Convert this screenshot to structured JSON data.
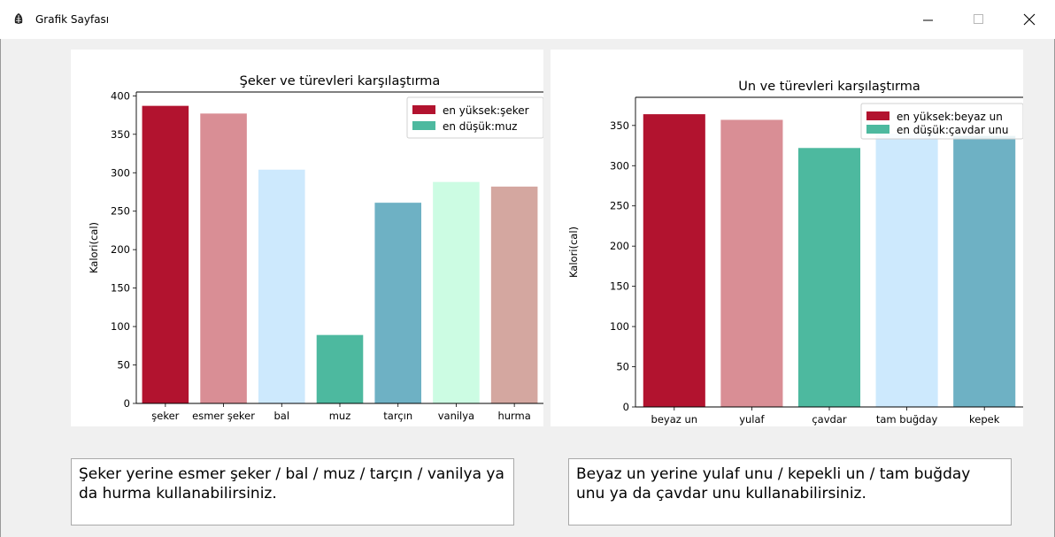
{
  "window": {
    "title": "Grafik Sayfası",
    "icon": "feather-icon",
    "controls": [
      "minimize-icon",
      "maximize-icon",
      "close-icon"
    ]
  },
  "chart_data": [
    {
      "type": "bar",
      "title": "Şeker ve türevleri karşılaştırma",
      "xlabel": "",
      "ylabel": "Kalori(cal)",
      "categories": [
        "şeker",
        "esmer şeker",
        "bal",
        "muz",
        "tarçın",
        "vanilya",
        "hurma"
      ],
      "values": [
        387,
        377,
        304,
        89,
        261,
        288,
        282
      ],
      "colors": [
        "#b2132f",
        "#d98e95",
        "#cde9fd",
        "#4db99f",
        "#6eb1c4",
        "#ccfce3",
        "#d4a7a0"
      ],
      "ylim": [
        0,
        405
      ],
      "yticks": [
        0,
        50,
        100,
        150,
        200,
        250,
        300,
        350,
        400
      ],
      "legend": [
        {
          "label": "en yüksek:şeker",
          "color": "#b2132f"
        },
        {
          "label": "en düşük:muz",
          "color": "#4db99f"
        }
      ],
      "legend_position": "upper right",
      "grid": false
    },
    {
      "type": "bar",
      "title": "Un ve türevleri karşılaştırma",
      "xlabel": "",
      "ylabel": "Kalori(cal)",
      "categories": [
        "beyaz un",
        "yulaf",
        "çavdar",
        "tam buğday",
        "kepek"
      ],
      "values": [
        364,
        357,
        322,
        340,
        337
      ],
      "colors": [
        "#b2132f",
        "#d98e95",
        "#4db99f",
        "#cde9fd",
        "#6eb1c4"
      ],
      "ylim": [
        0,
        385
      ],
      "yticks": [
        0,
        50,
        100,
        150,
        200,
        250,
        300,
        350
      ],
      "legend": [
        {
          "label": "en yüksek:beyaz un",
          "color": "#b2132f"
        },
        {
          "label": "en düşük:çavdar unu",
          "color": "#4db99f"
        }
      ],
      "legend_position": "upper right",
      "grid": false
    }
  ],
  "notes": {
    "left": "Şeker yerine esmer şeker / bal / muz / tarçın / vanilya ya da hurma kullanabilirsiniz.",
    "right": "Beyaz un yerine yulaf unu / kepekli un / tam buğday unu ya da çavdar unu kullanabilirsiniz."
  }
}
